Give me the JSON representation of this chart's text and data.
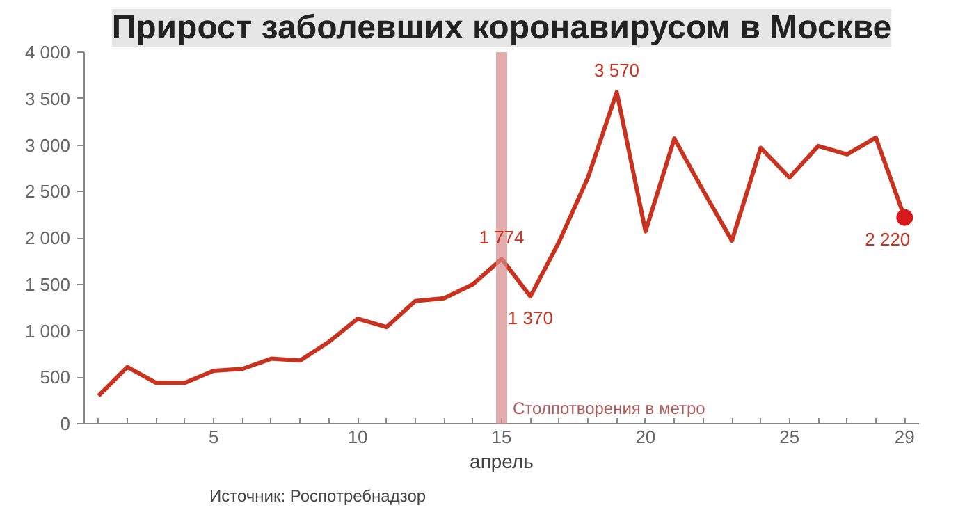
{
  "chart_data": {
    "type": "line",
    "title": "Прирост заболевших коронавирусом в Москве",
    "xlabel": "апрель",
    "annotations": [
      "Источник: Роспотребнадзор"
    ],
    "x": [
      1,
      2,
      3,
      4,
      5,
      6,
      7,
      8,
      9,
      10,
      11,
      12,
      13,
      14,
      15,
      16,
      17,
      18,
      19,
      20,
      21,
      22,
      23,
      24,
      25,
      26,
      27,
      28,
      29
    ],
    "series": [
      {
        "color": "#c8321e",
        "values": [
          300,
          610,
          440,
          440,
          570,
          590,
          700,
          680,
          880,
          1130,
          1040,
          1320,
          1350,
          1500,
          1774,
          1370,
          1960,
          2650,
          3570,
          2070,
          3070,
          2510,
          1970,
          2970,
          2650,
          2990,
          2900,
          3080,
          2220
        ],
        "value_labels": [
          null,
          null,
          null,
          null,
          null,
          null,
          null,
          null,
          null,
          null,
          null,
          null,
          null,
          null,
          "1 774",
          "1 370",
          null,
          null,
          "3 570",
          null,
          null,
          null,
          null,
          null,
          null,
          null,
          null,
          null,
          "2 220"
        ]
      },
      {
        "type": "scatter",
        "color": "#d7191c",
        "x": [
          29
        ],
        "values": [
          2220
        ]
      }
    ],
    "xlim": [
      0.5,
      29.5
    ],
    "xticks": [
      {
        "value": 1,
        "label": null
      },
      {
        "value": 2,
        "label": null
      },
      {
        "value": 3,
        "label": null
      },
      {
        "value": 4,
        "label": null
      },
      5,
      {
        "value": 6,
        "label": null
      },
      {
        "value": 7,
        "label": null
      },
      {
        "value": 8,
        "label": null
      },
      {
        "value": 9,
        "label": null
      },
      10,
      {
        "value": 11,
        "label": null
      },
      {
        "value": 12,
        "label": null
      },
      {
        "value": 13,
        "label": null
      },
      {
        "value": 14,
        "label": null
      },
      15,
      {
        "value": 16,
        "label": null
      },
      {
        "value": 17,
        "label": null
      },
      {
        "value": 18,
        "label": null
      },
      {
        "value": 19,
        "label": null
      },
      20,
      {
        "value": 21,
        "label": null
      },
      {
        "value": 22,
        "label": null
      },
      {
        "value": 23,
        "label": null
      },
      {
        "value": 24,
        "label": null
      },
      25,
      {
        "value": 26,
        "label": null
      },
      {
        "value": 27,
        "label": null
      },
      {
        "value": 28,
        "label": null
      },
      29
    ],
    "ylim": [
      0,
      4000
    ],
    "yticks": [
      0,
      500,
      {
        "value": 1000,
        "label": "1 000"
      },
      {
        "value": 1500,
        "label": "1 500"
      },
      {
        "value": 2000,
        "label": "2 000"
      },
      {
        "value": 2500,
        "label": "2 500"
      },
      {
        "value": 3000,
        "label": "3 000"
      },
      {
        "value": 3500,
        "label": "3 500"
      },
      {
        "value": 4000,
        "label": "4 000"
      }
    ],
    "ref_lines": [
      {
        "axis": "x",
        "value": 15,
        "label": "Столпотворения в метро",
        "color": "#d98a8a"
      }
    ],
    "grid": false,
    "line_style": "solid"
  }
}
